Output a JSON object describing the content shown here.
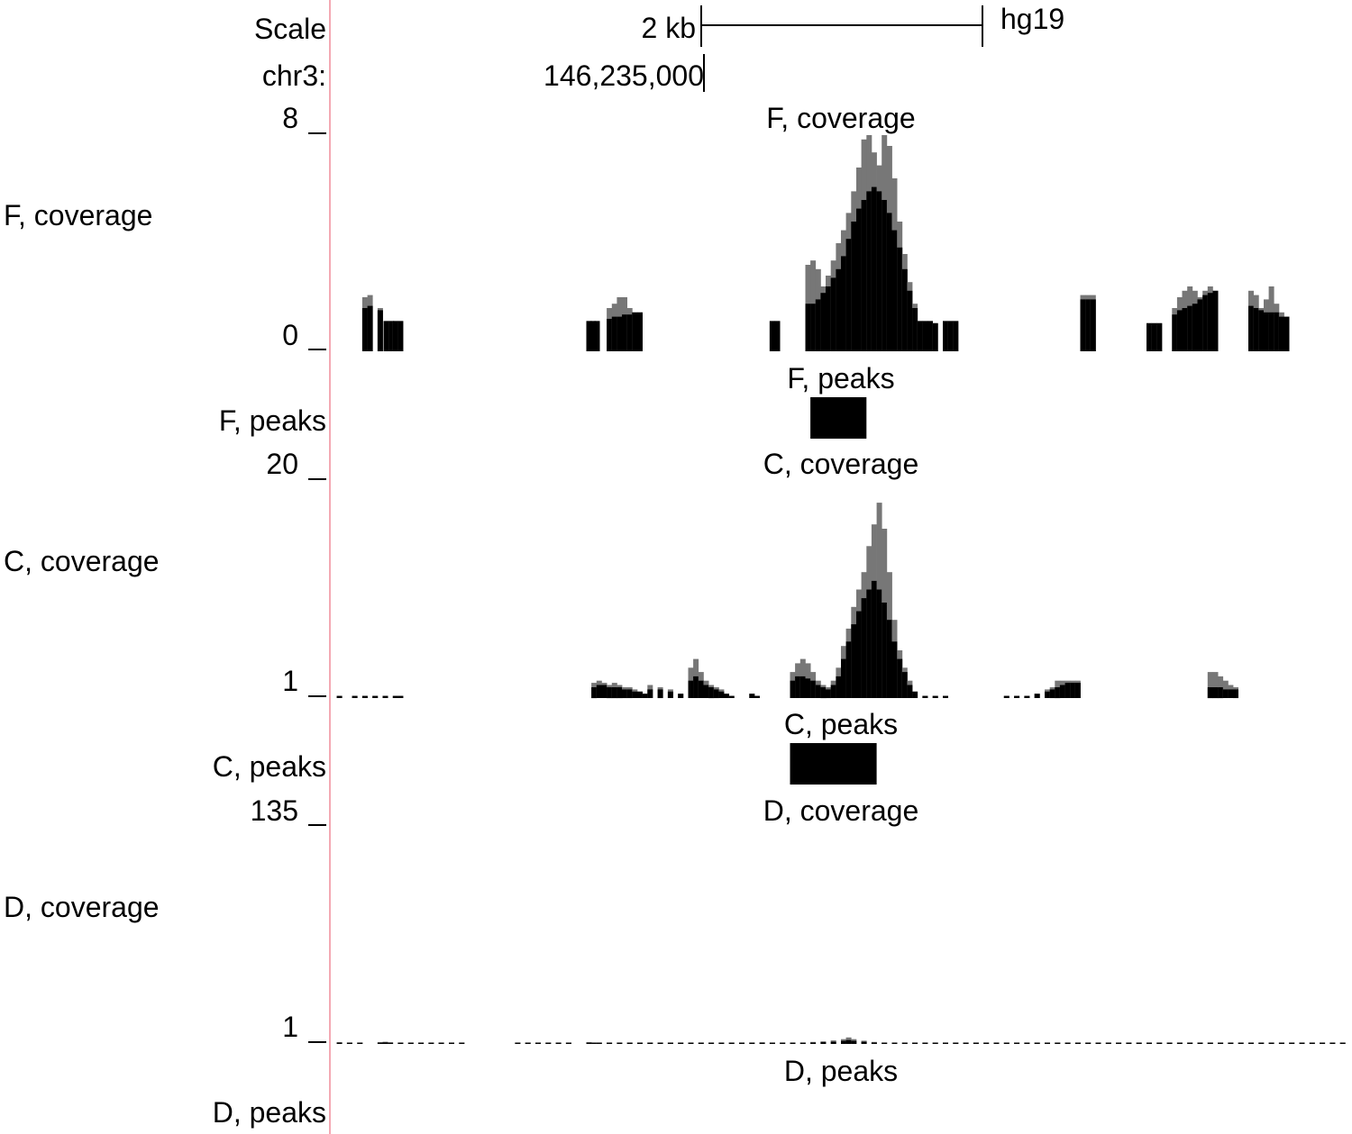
{
  "assembly": "hg19",
  "scale": {
    "label": "Scale",
    "length_label": "2 kb"
  },
  "position": {
    "chrom_label": "chr3:",
    "coordinate_label": "146,235,000"
  },
  "style": {
    "data_color": "#000000",
    "overlay_color": "#777777",
    "divider_color": "#f4a9b4"
  },
  "tracks": [
    {
      "id": "f",
      "side_label": "F, coverage",
      "center_label": "F, coverage",
      "axis_max": "8",
      "axis_min": "0",
      "height_fraction": {
        "x": [
          0.03,
          0.035,
          0.045,
          0.051,
          0.056,
          0.06,
          0.065,
          0.25,
          0.254,
          0.258,
          0.27,
          0.275,
          0.28,
          0.285,
          0.29,
          0.295,
          0.3,
          0.43,
          0.435,
          0.465,
          0.47,
          0.475,
          0.48,
          0.485,
          0.49,
          0.495,
          0.5,
          0.505,
          0.51,
          0.515,
          0.52,
          0.525,
          0.53,
          0.535,
          0.54,
          0.545,
          0.55,
          0.555,
          0.56,
          0.565,
          0.57,
          0.575,
          0.58,
          0.585,
          0.59,
          0.6,
          0.605,
          0.61,
          0.735,
          0.74,
          0.745,
          0.8,
          0.805,
          0.81,
          0.825,
          0.83,
          0.835,
          0.84,
          0.845,
          0.85,
          0.855,
          0.86,
          0.865,
          0.9,
          0.905,
          0.91,
          0.915,
          0.92,
          0.925,
          0.93,
          0.935
        ],
        "fill": [
          0.2,
          0.21,
          0.19,
          0.14,
          0.14,
          0.14,
          0.14,
          0.14,
          0.14,
          0.14,
          0.15,
          0.16,
          0.16,
          0.17,
          0.17,
          0.18,
          0.18,
          0.14,
          0.14,
          0.22,
          0.22,
          0.24,
          0.27,
          0.3,
          0.34,
          0.38,
          0.44,
          0.52,
          0.6,
          0.66,
          0.7,
          0.74,
          0.76,
          0.74,
          0.7,
          0.64,
          0.56,
          0.48,
          0.38,
          0.28,
          0.2,
          0.14,
          0.14,
          0.14,
          0.13,
          0.14,
          0.14,
          0.14,
          0.24,
          0.24,
          0.24,
          0.13,
          0.13,
          0.13,
          0.17,
          0.19,
          0.2,
          0.21,
          0.22,
          0.24,
          0.26,
          0.27,
          0.28,
          0.21,
          0.2,
          0.19,
          0.18,
          0.18,
          0.18,
          0.16,
          0.16
        ],
        "overlay": [
          0.25,
          0.26,
          0.2,
          0.14,
          0.14,
          0.14,
          0.14,
          0.14,
          0.14,
          0.14,
          0.2,
          0.22,
          0.25,
          0.25,
          0.2,
          0.18,
          0.18,
          0.14,
          0.14,
          0.4,
          0.42,
          0.38,
          0.3,
          0.35,
          0.42,
          0.5,
          0.56,
          0.64,
          0.74,
          0.85,
          0.98,
          1.0,
          0.92,
          0.86,
          1.0,
          0.95,
          0.8,
          0.6,
          0.45,
          0.32,
          0.22,
          0.14,
          0.14,
          0.14,
          0.13,
          0.14,
          0.14,
          0.14,
          0.26,
          0.26,
          0.26,
          0.13,
          0.13,
          0.13,
          0.2,
          0.25,
          0.28,
          0.3,
          0.28,
          0.25,
          0.28,
          0.3,
          0.28,
          0.28,
          0.26,
          0.2,
          0.24,
          0.3,
          0.22,
          0.18,
          0.16
        ]
      },
      "peaks_label": "F, peaks",
      "peaks": [
        {
          "start": 0.47,
          "end": 0.525
        }
      ]
    },
    {
      "id": "c",
      "side_label": "C, coverage",
      "center_label": "C, coverage",
      "axis_max": "20",
      "axis_min": "1",
      "height_fraction": {
        "x": [
          0.005,
          0.02,
          0.03,
          0.04,
          0.05,
          0.06,
          0.065,
          0.255,
          0.26,
          0.265,
          0.27,
          0.275,
          0.28,
          0.285,
          0.29,
          0.295,
          0.3,
          0.305,
          0.31,
          0.32,
          0.33,
          0.34,
          0.35,
          0.355,
          0.36,
          0.365,
          0.37,
          0.375,
          0.38,
          0.385,
          0.39,
          0.41,
          0.415,
          0.45,
          0.455,
          0.46,
          0.465,
          0.47,
          0.475,
          0.48,
          0.485,
          0.49,
          0.495,
          0.5,
          0.505,
          0.51,
          0.515,
          0.52,
          0.525,
          0.53,
          0.535,
          0.54,
          0.545,
          0.55,
          0.555,
          0.56,
          0.565,
          0.57,
          0.58,
          0.59,
          0.6,
          0.66,
          0.67,
          0.68,
          0.69,
          0.7,
          0.705,
          0.71,
          0.715,
          0.72,
          0.725,
          0.73,
          0.86,
          0.865,
          0.87,
          0.875,
          0.88,
          0.885
        ],
        "fill": [
          0.01,
          0.01,
          0.01,
          0.01,
          0.01,
          0.01,
          0.01,
          0.05,
          0.06,
          0.06,
          0.05,
          0.05,
          0.05,
          0.04,
          0.04,
          0.03,
          0.03,
          0.02,
          0.04,
          0.04,
          0.03,
          0.02,
          0.08,
          0.1,
          0.08,
          0.06,
          0.05,
          0.04,
          0.03,
          0.02,
          0.01,
          0.02,
          0.01,
          0.08,
          0.1,
          0.1,
          0.09,
          0.08,
          0.06,
          0.05,
          0.04,
          0.06,
          0.1,
          0.18,
          0.26,
          0.34,
          0.4,
          0.46,
          0.5,
          0.54,
          0.5,
          0.44,
          0.36,
          0.26,
          0.18,
          0.12,
          0.06,
          0.03,
          0.01,
          0.01,
          0.01,
          0.01,
          0.01,
          0.01,
          0.02,
          0.03,
          0.04,
          0.05,
          0.06,
          0.07,
          0.07,
          0.07,
          0.05,
          0.05,
          0.05,
          0.04,
          0.04,
          0.04
        ],
        "overlay": [
          0.01,
          0.01,
          0.01,
          0.01,
          0.01,
          0.01,
          0.01,
          0.07,
          0.08,
          0.07,
          0.06,
          0.07,
          0.06,
          0.05,
          0.05,
          0.04,
          0.03,
          0.02,
          0.06,
          0.05,
          0.04,
          0.02,
          0.14,
          0.18,
          0.12,
          0.08,
          0.06,
          0.05,
          0.04,
          0.02,
          0.01,
          0.02,
          0.01,
          0.12,
          0.16,
          0.18,
          0.16,
          0.12,
          0.08,
          0.06,
          0.05,
          0.08,
          0.14,
          0.24,
          0.32,
          0.42,
          0.5,
          0.58,
          0.7,
          0.8,
          0.9,
          0.78,
          0.58,
          0.36,
          0.22,
          0.14,
          0.08,
          0.03,
          0.01,
          0.01,
          0.01,
          0.01,
          0.01,
          0.01,
          0.02,
          0.04,
          0.05,
          0.08,
          0.08,
          0.08,
          0.08,
          0.08,
          0.12,
          0.12,
          0.1,
          0.08,
          0.06,
          0.05
        ]
      },
      "peaks_label": "C, peaks",
      "peaks": [
        {
          "start": 0.45,
          "end": 0.535
        }
      ]
    },
    {
      "id": "d",
      "side_label": "D, coverage",
      "center_label": "D, coverage",
      "axis_max": "135",
      "axis_min": "1",
      "height_fraction": {
        "x": [
          0.005,
          0.015,
          0.025,
          0.045,
          0.05,
          0.055,
          0.065,
          0.075,
          0.085,
          0.095,
          0.105,
          0.115,
          0.125,
          0.18,
          0.19,
          0.2,
          0.21,
          0.22,
          0.23,
          0.25,
          0.255,
          0.26,
          0.27,
          0.28,
          0.29,
          0.3,
          0.31,
          0.32,
          0.33,
          0.34,
          0.35,
          0.36,
          0.37,
          0.38,
          0.39,
          0.4,
          0.41,
          0.42,
          0.43,
          0.44,
          0.45,
          0.46,
          0.47,
          0.48,
          0.49,
          0.5,
          0.505,
          0.51,
          0.52,
          0.53,
          0.54,
          0.55,
          0.56,
          0.57,
          0.58,
          0.59,
          0.6,
          0.61,
          0.62,
          0.63,
          0.64,
          0.65,
          0.66,
          0.67,
          0.68,
          0.69,
          0.7,
          0.71,
          0.72,
          0.73,
          0.74,
          0.75,
          0.76,
          0.77,
          0.78,
          0.79,
          0.8,
          0.81,
          0.82,
          0.83,
          0.84,
          0.85,
          0.86,
          0.87,
          0.88,
          0.89,
          0.9,
          0.91,
          0.92,
          0.93,
          0.94,
          0.95,
          0.96,
          0.97,
          0.98,
          0.99
        ],
        "fill": [
          0.005,
          0.003,
          0.003,
          0.006,
          0.007,
          0.005,
          0.003,
          0.003,
          0.003,
          0.003,
          0.002,
          0.002,
          0.002,
          0.003,
          0.003,
          0.003,
          0.003,
          0.003,
          0.002,
          0.005,
          0.004,
          0.003,
          0.003,
          0.003,
          0.002,
          0.002,
          0.003,
          0.003,
          0.004,
          0.003,
          0.003,
          0.002,
          0.002,
          0.003,
          0.002,
          0.002,
          0.004,
          0.004,
          0.004,
          0.003,
          0.003,
          0.003,
          0.006,
          0.008,
          0.01,
          0.014,
          0.018,
          0.014,
          0.01,
          0.006,
          0.003,
          0.003,
          0.002,
          0.002,
          0.002,
          0.002,
          0.003,
          0.003,
          0.002,
          0.002,
          0.002,
          0.002,
          0.002,
          0.003,
          0.003,
          0.002,
          0.003,
          0.003,
          0.004,
          0.003,
          0.003,
          0.003,
          0.003,
          0.004,
          0.003,
          0.003,
          0.003,
          0.003,
          0.002,
          0.003,
          0.003,
          0.003,
          0.003,
          0.003,
          0.003,
          0.003,
          0.003,
          0.003,
          0.002,
          0.003,
          0.003,
          0.003,
          0.003,
          0.003,
          0.002,
          0.003
        ],
        "overlay": [
          0.008,
          0.004,
          0.004,
          0.008,
          0.01,
          0.007,
          0.004,
          0.004,
          0.003,
          0.003,
          0.003,
          0.002,
          0.002,
          0.004,
          0.004,
          0.004,
          0.004,
          0.004,
          0.003,
          0.008,
          0.006,
          0.004,
          0.004,
          0.004,
          0.003,
          0.003,
          0.004,
          0.005,
          0.006,
          0.004,
          0.004,
          0.003,
          0.003,
          0.005,
          0.003,
          0.003,
          0.006,
          0.007,
          0.006,
          0.005,
          0.005,
          0.005,
          0.009,
          0.012,
          0.016,
          0.022,
          0.03,
          0.022,
          0.015,
          0.009,
          0.004,
          0.004,
          0.003,
          0.003,
          0.003,
          0.003,
          0.004,
          0.004,
          0.003,
          0.003,
          0.003,
          0.003,
          0.003,
          0.005,
          0.005,
          0.003,
          0.004,
          0.005,
          0.006,
          0.004,
          0.004,
          0.004,
          0.004,
          0.006,
          0.004,
          0.004,
          0.005,
          0.005,
          0.003,
          0.004,
          0.004,
          0.004,
          0.005,
          0.005,
          0.004,
          0.004,
          0.004,
          0.004,
          0.003,
          0.004,
          0.004,
          0.004,
          0.004,
          0.004,
          0.003,
          0.004
        ]
      },
      "peaks_label": "D, peaks",
      "peaks": []
    }
  ]
}
